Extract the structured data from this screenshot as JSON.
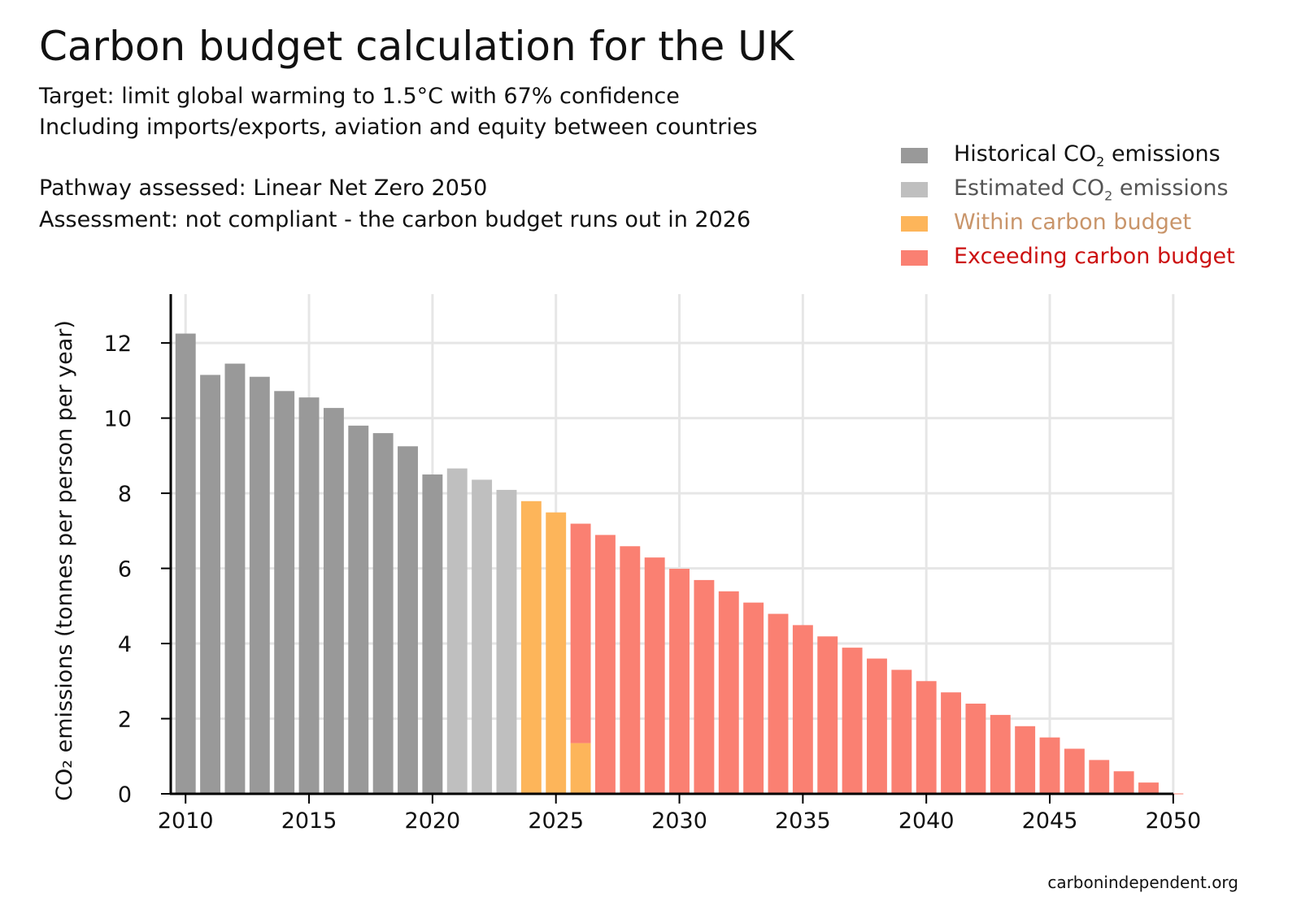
{
  "title": "Carbon budget calculation for the UK",
  "subtitle_lines": [
    "Target: limit global warming to 1.5°C with 67% confidence",
    "Including imports/exports, aviation and equity between countries",
    "Pathway assessed: Linear Net Zero 2050",
    "Assessment: not compliant - the carbon budget runs out in 2026"
  ],
  "footer": "carbonindependent.org",
  "legend": [
    {
      "pre": "Historical CO",
      "sub": "2",
      "post": " emissions",
      "swatch": "#999999",
      "text_color": "#111111"
    },
    {
      "pre": "Estimated CO",
      "sub": "2",
      "post": " emissions",
      "swatch": "#bfbfbf",
      "text_color": "#555555"
    },
    {
      "pre": "Within carbon budget",
      "sub": "",
      "post": "",
      "swatch": "#fdb55a",
      "text_color": "#c9956a"
    },
    {
      "pre": "Exceeding carbon budget",
      "sub": "",
      "post": "",
      "swatch": "#fa8072",
      "text_color": "#cc1111"
    }
  ],
  "chart_data": {
    "type": "bar",
    "stacked": true,
    "ylabel": "CO₂ emissions (tonnes per person per year)",
    "xlabel": "",
    "ylim": [
      0,
      13.3
    ],
    "xlim": [
      2009.4,
      2050.4
    ],
    "yticks": [
      0,
      2,
      4,
      6,
      8,
      10,
      12
    ],
    "xticks": [
      2010,
      2015,
      2020,
      2025,
      2030,
      2035,
      2040,
      2045,
      2050
    ],
    "grid": true,
    "colors": {
      "historical": "#999999",
      "estimated": "#bfbfbf",
      "within": "#fdb55a",
      "exceeding": "#fa8072"
    },
    "x": [
      2010,
      2011,
      2012,
      2013,
      2014,
      2015,
      2016,
      2017,
      2018,
      2019,
      2020,
      2021,
      2022,
      2023,
      2024,
      2025,
      2026,
      2027,
      2028,
      2029,
      2030,
      2031,
      2032,
      2033,
      2034,
      2035,
      2036,
      2037,
      2038,
      2039,
      2040,
      2041,
      2042,
      2043,
      2044,
      2045,
      2046,
      2047,
      2048,
      2049,
      2050
    ],
    "series": [
      {
        "name": "Historical CO2 emissions",
        "key": "historical",
        "values": [
          12.25,
          11.15,
          11.45,
          11.1,
          10.72,
          10.55,
          10.27,
          9.8,
          9.6,
          9.25,
          8.5,
          0,
          0,
          0,
          0,
          0,
          0,
          0,
          0,
          0,
          0,
          0,
          0,
          0,
          0,
          0,
          0,
          0,
          0,
          0,
          0,
          0,
          0,
          0,
          0,
          0,
          0,
          0,
          0,
          0,
          0
        ]
      },
      {
        "name": "Estimated CO2 emissions",
        "key": "estimated",
        "values": [
          0,
          0,
          0,
          0,
          0,
          0,
          0,
          0,
          0,
          0,
          0,
          8.66,
          8.36,
          8.09,
          0,
          0,
          0,
          0,
          0,
          0,
          0,
          0,
          0,
          0,
          0,
          0,
          0,
          0,
          0,
          0,
          0,
          0,
          0,
          0,
          0,
          0,
          0,
          0,
          0,
          0,
          0
        ]
      },
      {
        "name": "Within carbon budget",
        "key": "within",
        "values": [
          0,
          0,
          0,
          0,
          0,
          0,
          0,
          0,
          0,
          0,
          0,
          0,
          0,
          0,
          7.79,
          7.49,
          1.35,
          0,
          0,
          0,
          0,
          0,
          0,
          0,
          0,
          0,
          0,
          0,
          0,
          0,
          0,
          0,
          0,
          0,
          0,
          0,
          0,
          0,
          0,
          0,
          0
        ]
      },
      {
        "name": "Exceeding carbon budget",
        "key": "exceeding",
        "values": [
          0,
          0,
          0,
          0,
          0,
          0,
          0,
          0,
          0,
          0,
          0,
          0,
          0,
          0,
          0,
          0,
          5.84,
          6.89,
          6.59,
          6.29,
          5.99,
          5.69,
          5.39,
          5.09,
          4.79,
          4.49,
          4.19,
          3.89,
          3.6,
          3.3,
          3.0,
          2.7,
          2.4,
          2.1,
          1.8,
          1.5,
          1.2,
          0.9,
          0.6,
          0.3,
          0.01
        ]
      }
    ]
  }
}
